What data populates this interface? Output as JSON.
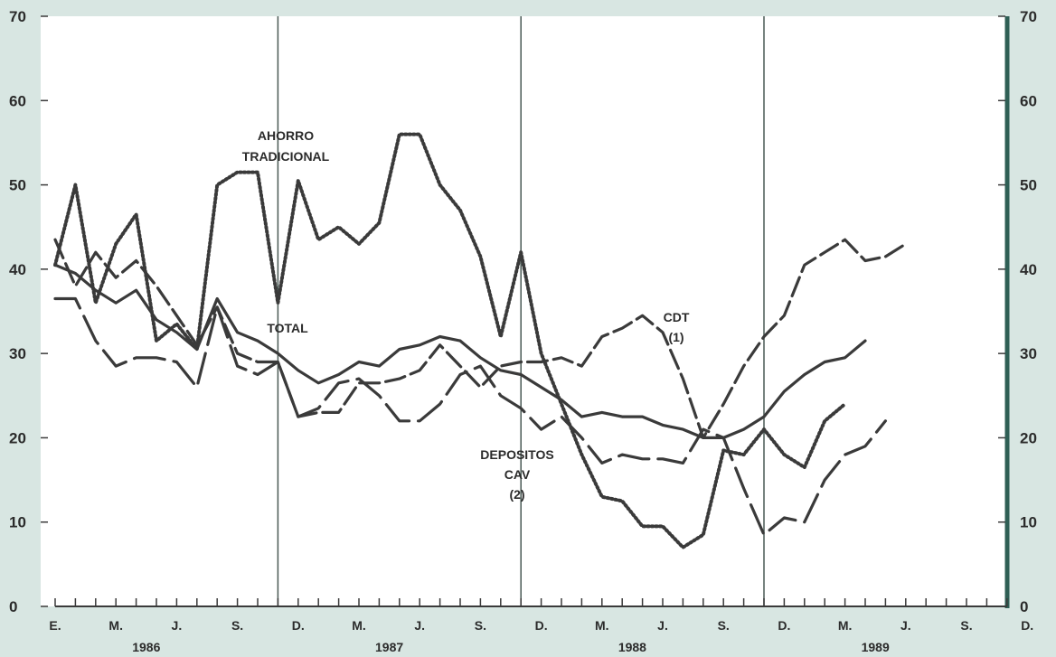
{
  "chart_data": {
    "type": "line",
    "ylim": [
      0,
      70
    ],
    "y_ticks": [
      0,
      10,
      20,
      30,
      40,
      50,
      60,
      70
    ],
    "grid": "vertical lines at each December",
    "month_labels": [
      "E.",
      "M.",
      "J.",
      "S.",
      "D.",
      "M.",
      "J.",
      "S.",
      "D.",
      "M.",
      "J.",
      "S.",
      "D.",
      "M.",
      "J.",
      "S.",
      "D."
    ],
    "year_labels": [
      "1986",
      "1987",
      "1988",
      "1989"
    ],
    "annotations": {
      "ahorro": [
        "AHORRO",
        "TRADICIONAL"
      ],
      "total": [
        "TOTAL"
      ],
      "cdt": [
        "CDT",
        "(1)"
      ],
      "depositos": [
        "DEPOSITOS",
        "CAV",
        "(2)"
      ]
    },
    "colors": {
      "background": "#d8e6e2",
      "plot": "#ffffff",
      "line": "#3a3a3a",
      "frame": "#2f5f55"
    },
    "series": [
      {
        "name": "AHORRO TRADICIONAL",
        "style": "dotted",
        "values": [
          40.5,
          50,
          36,
          43,
          46.5,
          31.5,
          33.5,
          30.5,
          50,
          51.5,
          51.5,
          36,
          50.5,
          43.5,
          45,
          43,
          45.5,
          56,
          56,
          50,
          47,
          41.5,
          32,
          42,
          30,
          24,
          18,
          13,
          12.5,
          9.5,
          9.5,
          7,
          8.5,
          18.5,
          18,
          21,
          18,
          16.5,
          22,
          24
        ]
      },
      {
        "name": "TOTAL",
        "style": "solid",
        "values": [
          40.5,
          39.5,
          37.5,
          36,
          37.5,
          34,
          32.5,
          30.5,
          36.5,
          32.5,
          31.5,
          30,
          28,
          26.5,
          27.5,
          29,
          28.5,
          30.5,
          31,
          32,
          31.5,
          29.5,
          28,
          27.5,
          26,
          24.5,
          22.5,
          23,
          22.5,
          22.5,
          21.5,
          21,
          20,
          20,
          21,
          22.5,
          25.5,
          27.5,
          29,
          29.5,
          31.5
        ]
      },
      {
        "name": "CDT (1)",
        "style": "long-dash",
        "values": [
          43.5,
          38,
          42,
          39,
          41,
          38,
          34.5,
          31,
          35.5,
          30,
          29,
          29,
          22.5,
          23,
          23,
          26.5,
          26.5,
          27,
          28,
          31,
          28.5,
          26,
          28.5,
          29,
          29,
          29.5,
          28.5,
          32,
          33,
          34.5,
          32.5,
          27,
          20,
          24,
          28.5,
          32,
          34.5,
          40.5,
          42,
          43.5,
          41,
          41.5,
          43
        ]
      },
      {
        "name": "DEPOSITOS CAV (2)",
        "style": "dash",
        "values": [
          36.5,
          36.5,
          31.5,
          28.5,
          29.5,
          29.5,
          29,
          26,
          35.5,
          28.5,
          27.5,
          29,
          22.5,
          23.5,
          26.5,
          27,
          25,
          22,
          22,
          24,
          27.5,
          28.5,
          25,
          23.5,
          21,
          22.5,
          20,
          17,
          18,
          17.5,
          17.5,
          17,
          21,
          20,
          14,
          8.5,
          10.5,
          10,
          15,
          18,
          19,
          22
        ]
      }
    ]
  }
}
